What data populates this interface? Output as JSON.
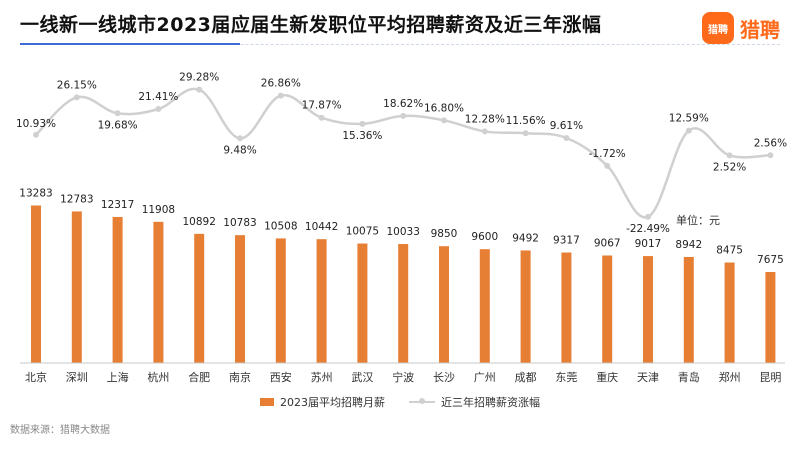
{
  "header": {
    "title": "一线新一线城市2023届应届生新发职位平均招聘薪资及近三年涨幅",
    "logo_mark": "猎聘",
    "logo_text": "猎聘"
  },
  "unit_label": "单位：元",
  "source_label": "数据来源：猎聘大数据",
  "colors": {
    "bar": "#e67e34",
    "line": "#d0d0d0",
    "brand": "#ff6a1a"
  },
  "chart_data": {
    "type": "bar+line",
    "categories": [
      "北京",
      "深圳",
      "上海",
      "杭州",
      "合肥",
      "南京",
      "西安",
      "苏州",
      "武汉",
      "宁波",
      "长沙",
      "广州",
      "成都",
      "东莞",
      "重庆",
      "天津",
      "青岛",
      "郑州",
      "昆明"
    ],
    "series": [
      {
        "name": "2023届平均招聘月薪",
        "type": "bar",
        "values": [
          13283,
          12783,
          12317,
          11908,
          10892,
          10783,
          10508,
          10442,
          10075,
          10033,
          9850,
          9600,
          9492,
          9317,
          9067,
          9017,
          8942,
          8475,
          7675
        ]
      },
      {
        "name": "近三年招聘薪资涨幅",
        "type": "line",
        "values": [
          10.93,
          26.15,
          19.68,
          21.41,
          29.28,
          9.48,
          26.86,
          17.87,
          15.36,
          18.62,
          16.8,
          12.28,
          11.56,
          9.61,
          -1.72,
          -22.49,
          12.59,
          2.52,
          2.56
        ],
        "labels": [
          "10.93%",
          "26.15%",
          "19.68%",
          "21.41%",
          "29.28%",
          "9.48%",
          "26.86%",
          "17.87%",
          "15.36%",
          "18.62%",
          "16.80%",
          "12.28%",
          "11.56%",
          "9.61%",
          "-1.72%",
          "-22.49%",
          "12.59%",
          "2.52%",
          "2.56%"
        ]
      }
    ],
    "bar_ylim": [
      0,
      14000
    ],
    "line_ylim": [
      -25,
      32
    ],
    "legend": [
      "2023届平均招聘月薪",
      "近三年招聘薪资涨幅"
    ],
    "legend_position": "bottom"
  }
}
